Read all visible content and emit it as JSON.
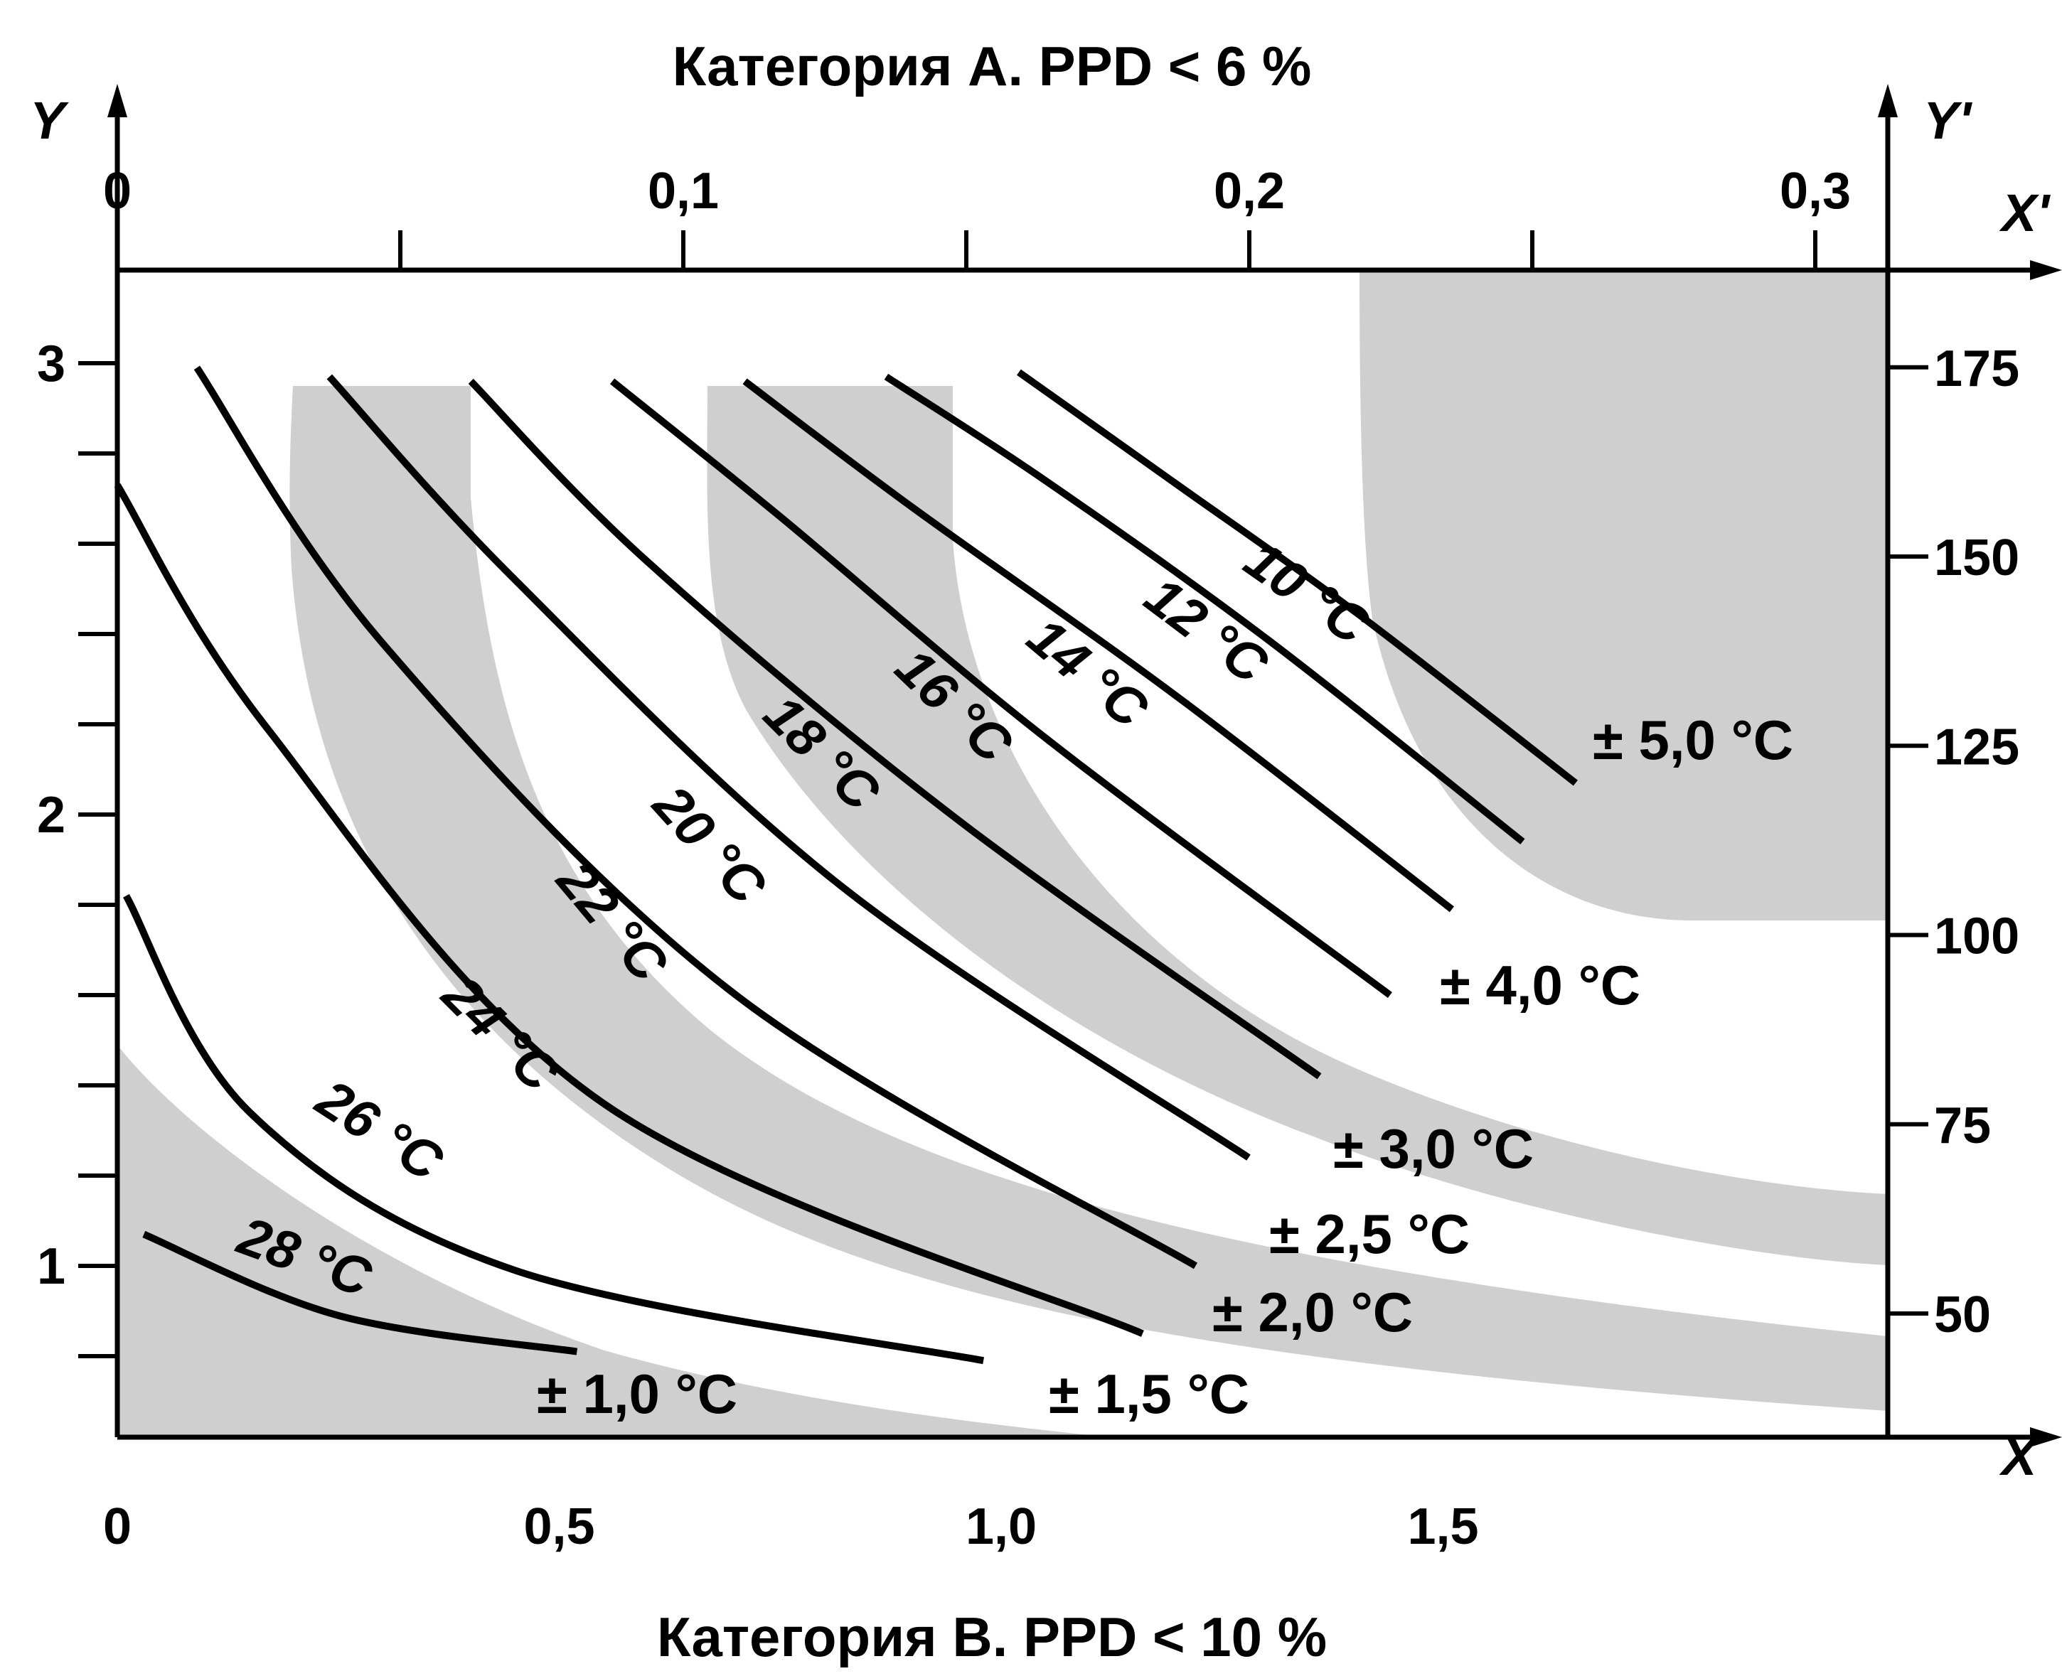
{
  "chart_data": {
    "type": "line",
    "title_top": "Категория A. PPD < 6 %",
    "title_bottom": "Категория B. PPD < 10 %",
    "axes": {
      "x": {
        "label": "X",
        "min": 0,
        "max": 2.0,
        "ticks": [
          {
            "v": 0,
            "label": "0"
          },
          {
            "v": 0.5,
            "label": "0,5"
          },
          {
            "v": 1.0,
            "label": "1,0"
          },
          {
            "v": 1.5,
            "label": "1,5"
          }
        ],
        "minor": [
          0.25,
          0.75,
          1.25,
          1.75
        ]
      },
      "y": {
        "label": "Y",
        "min": 0.6,
        "max": 3.2,
        "ticks": [
          {
            "v": 1,
            "label": "1"
          },
          {
            "v": 2,
            "label": "2"
          },
          {
            "v": 3,
            "label": "3"
          }
        ],
        "minor": [
          0.8,
          1.2,
          1.4,
          1.6,
          1.8,
          2.2,
          2.4,
          2.6,
          2.8
        ]
      },
      "x2": {
        "label": "X'",
        "min": 0,
        "max": 0.315,
        "ticks": [
          {
            "v": 0,
            "label": "0"
          },
          {
            "v": 0.1,
            "label": "0,1"
          },
          {
            "v": 0.2,
            "label": "0,2"
          },
          {
            "v": 0.3,
            "label": "0,3"
          }
        ],
        "minor": [
          0.05,
          0.15,
          0.25
        ]
      },
      "y2": {
        "label": "Y'",
        "min": 35,
        "max": 185,
        "ticks": [
          {
            "v": 50,
            "label": "50"
          },
          {
            "v": 75,
            "label": "75"
          },
          {
            "v": 100,
            "label": "100"
          },
          {
            "v": 125,
            "label": "125"
          },
          {
            "v": 150,
            "label": "150"
          },
          {
            "v": 175,
            "label": "175"
          }
        ]
      }
    },
    "series": [
      {
        "name": "10 °C",
        "x": [
          1.02,
          1.2,
          1.4,
          1.65
        ],
        "y": [
          2.98,
          2.73,
          2.45,
          2.07
        ]
      },
      {
        "name": "12 °C",
        "x": [
          0.87,
          1.05,
          1.3,
          1.59
        ],
        "y": [
          2.97,
          2.74,
          2.39,
          1.94
        ]
      },
      {
        "name": "14 °C",
        "x": [
          0.71,
          0.9,
          1.2,
          1.51
        ],
        "y": [
          2.96,
          2.68,
          2.26,
          1.79
        ]
      },
      {
        "name": "16 °C",
        "x": [
          0.56,
          0.75,
          1.05,
          1.44
        ],
        "y": [
          2.96,
          2.66,
          2.17,
          1.6
        ]
      },
      {
        "name": "18 °C",
        "x": [
          0.4,
          0.6,
          0.95,
          1.36
        ],
        "y": [
          2.96,
          2.56,
          1.99,
          1.42
        ]
      },
      {
        "name": "20 °C",
        "x": [
          0.24,
          0.45,
          0.82,
          1.28
        ],
        "y": [
          2.97,
          2.52,
          1.84,
          1.24
        ]
      },
      {
        "name": "22 °C",
        "x": [
          0.09,
          0.3,
          0.7,
          1.22
        ],
        "y": [
          2.99,
          2.38,
          1.6,
          1.0
        ]
      },
      {
        "name": "24 °C",
        "x": [
          0.0,
          0.17,
          0.55,
          1.16
        ],
        "y": [
          2.73,
          2.19,
          1.36,
          0.85
        ]
      },
      {
        "name": "26 °C",
        "x": [
          0.01,
          0.15,
          0.45,
          0.98
        ],
        "y": [
          1.82,
          1.34,
          0.99,
          0.79
        ]
      },
      {
        "name": "28 °C",
        "x": [
          0.03,
          0.25,
          0.52
        ],
        "y": [
          1.07,
          0.89,
          0.81
        ]
      }
    ],
    "tolerance_labels": [
      "± 5,0 °C",
      "± 4,0 °C",
      "± 3,0 °C",
      "± 2,5 °C",
      "± 2,0 °C",
      "± 1,5 °C",
      "± 1,0 °C"
    ],
    "shaded_bands": true,
    "grid": false
  }
}
